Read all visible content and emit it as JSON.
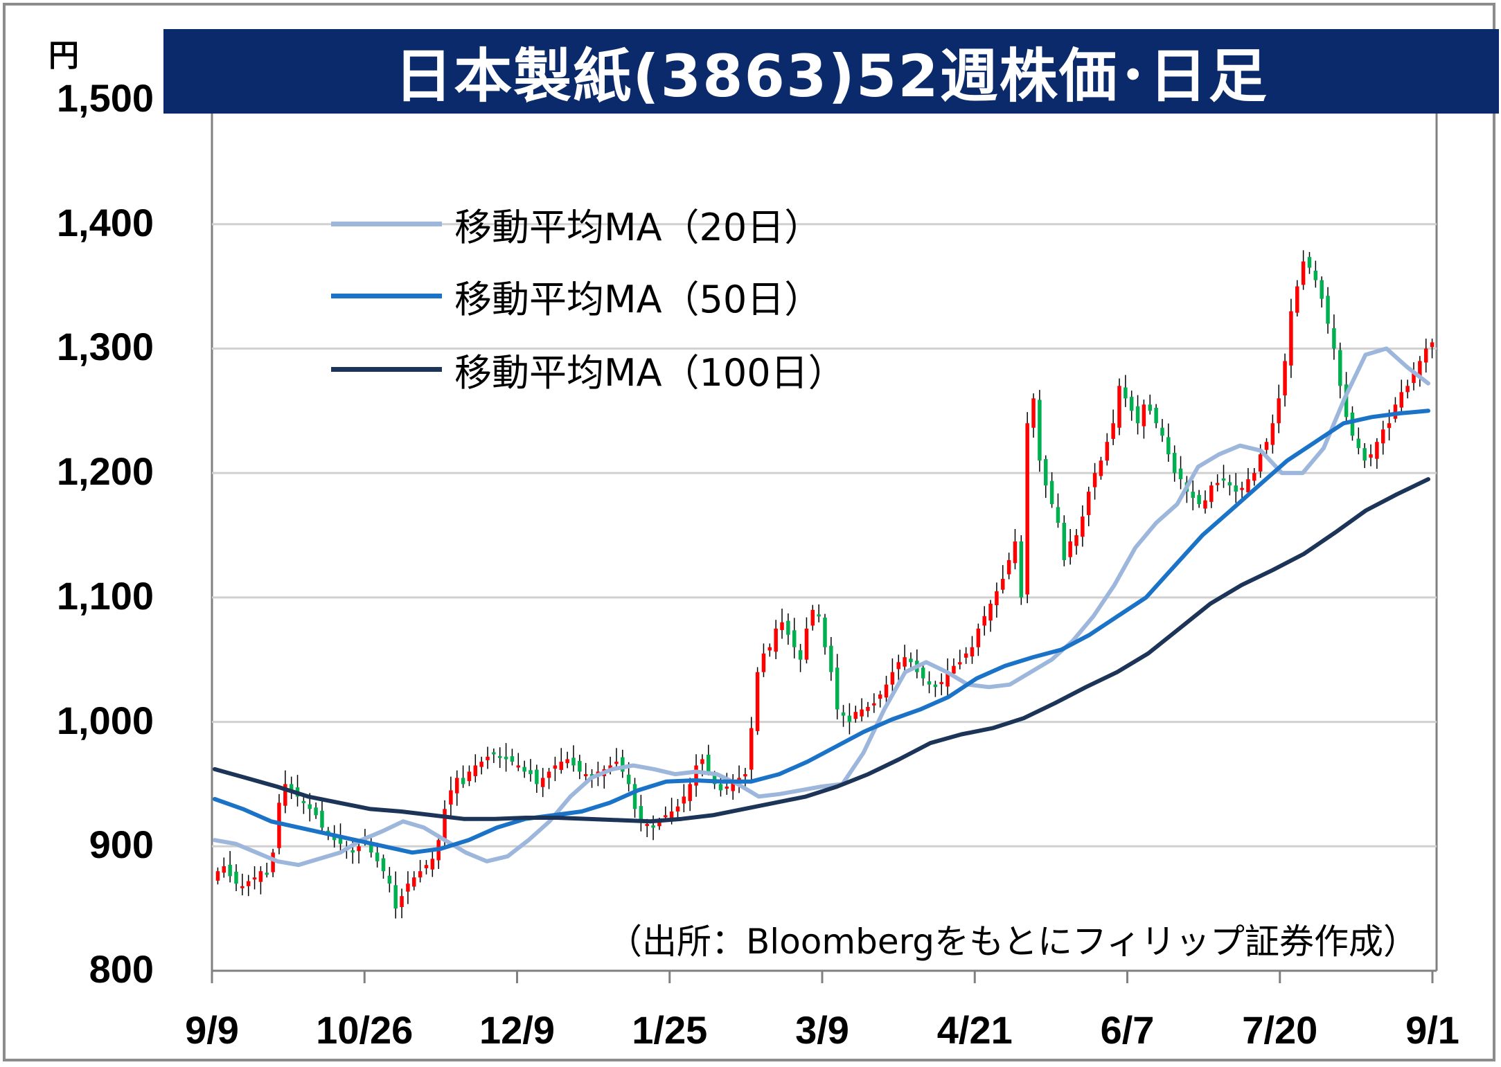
{
  "title": "日本製紙(3863)52週株価･日足",
  "unit_label": "円",
  "source_note": "（出所：Bloombergをもとにフィリップ証券作成）",
  "colors": {
    "title_bg": "#0b2a6b",
    "up_candle": "#ff0000",
    "down_candle": "#00b050",
    "ma20": "#9db6dc",
    "ma50": "#1a73c7",
    "ma100": "#1c3458",
    "grid": "#d0d0d0"
  },
  "legend": [
    {
      "label": "移動平均MA（20日）",
      "color": "#9db6dc"
    },
    {
      "label": "移動平均MA（50日）",
      "color": "#1a73c7"
    },
    {
      "label": "移動平均MA（100日）",
      "color": "#1c3458"
    }
  ],
  "chart_data": {
    "type": "candlestick",
    "title": "日本製紙(3863)52週株価･日足",
    "ylabel": "円",
    "ylim": [
      800,
      1500
    ],
    "yticks": [
      800,
      900,
      1000,
      1100,
      1200,
      1300,
      1400,
      1500
    ],
    "ytick_labels": [
      "800",
      "900",
      "1,000",
      "1,100",
      "1,200",
      "1,300",
      "1,400",
      "1,500"
    ],
    "xtick_labels": [
      "9/9",
      "10/26",
      "12/9",
      "1/25",
      "3/9",
      "4/21",
      "6/7",
      "7/20",
      "9/1"
    ],
    "grid": true,
    "legend_position": "top-left",
    "close_series": [
      880,
      884,
      876,
      870,
      868,
      872,
      875,
      880,
      878,
      895,
      935,
      950,
      945,
      940,
      935,
      930,
      925,
      915,
      910,
      905,
      902,
      898,
      895,
      900,
      905,
      895,
      888,
      880,
      870,
      850,
      860,
      870,
      875,
      880,
      885,
      890,
      905,
      930,
      945,
      955,
      950,
      960,
      965,
      968,
      972,
      975,
      972,
      970,
      968,
      965,
      960,
      958,
      950,
      955,
      960,
      965,
      968,
      970,
      965,
      960,
      958,
      955,
      960,
      962,
      965,
      968,
      960,
      950,
      930,
      920,
      918,
      915,
      920,
      925,
      928,
      932,
      940,
      950,
      965,
      970,
      960,
      950,
      945,
      948,
      952,
      955,
      958,
      995,
      1040,
      1055,
      1060,
      1075,
      1080,
      1070,
      1060,
      1050,
      1075,
      1090,
      1085,
      1060,
      1040,
      1010,
      1005,
      1000,
      1008,
      1010,
      1012,
      1015,
      1022,
      1030,
      1040,
      1048,
      1052,
      1048,
      1040,
      1035,
      1030,
      1028,
      1032,
      1040,
      1045,
      1048,
      1055,
      1060,
      1075,
      1085,
      1095,
      1105,
      1115,
      1130,
      1145,
      1100,
      1240,
      1260,
      1210,
      1190,
      1175,
      1160,
      1130,
      1145,
      1150,
      1165,
      1185,
      1200,
      1210,
      1225,
      1240,
      1270,
      1260,
      1250,
      1240,
      1255,
      1250,
      1240,
      1230,
      1215,
      1200,
      1195,
      1185,
      1180,
      1175,
      1178,
      1190,
      1192,
      1195,
      1190,
      1185,
      1188,
      1195,
      1200,
      1215,
      1225,
      1240,
      1260,
      1290,
      1330,
      1350,
      1370,
      1365,
      1355,
      1340,
      1320,
      1300,
      1270,
      1245,
      1230,
      1220,
      1210,
      1215,
      1225,
      1235,
      1240,
      1255,
      1265,
      1270,
      1280,
      1290,
      1300,
      1305
    ],
    "series": [
      {
        "name": "移動平均MA（20日）",
        "values": [
          905,
          902,
          895,
          888,
          885,
          890,
          895,
          905,
          912,
          920,
          915,
          905,
          895,
          888,
          892,
          905,
          920,
          940,
          955,
          962,
          965,
          962,
          958,
          960,
          958,
          950,
          940,
          942,
          945,
          948,
          950,
          975,
          1010,
          1040,
          1048,
          1040,
          1030,
          1028,
          1030,
          1040,
          1050,
          1065,
          1085,
          1110,
          1140,
          1160,
          1175,
          1205,
          1215,
          1222,
          1218,
          1200,
          1200,
          1220,
          1260,
          1295,
          1300,
          1285,
          1272
        ]
      },
      {
        "name": "移動平均MA（50日）",
        "values": [
          938,
          930,
          920,
          915,
          910,
          905,
          900,
          895,
          898,
          905,
          915,
          922,
          925,
          928,
          935,
          945,
          952,
          953,
          952,
          952,
          958,
          968,
          980,
          992,
          1002,
          1010,
          1020,
          1035,
          1045,
          1052,
          1058,
          1070,
          1085,
          1100,
          1125,
          1150,
          1170,
          1190,
          1210,
          1225,
          1240,
          1245,
          1248,
          1250
        ]
      },
      {
        "name": "移動平均MA（100日）",
        "values": [
          962,
          955,
          948,
          940,
          935,
          930,
          928,
          925,
          922,
          922,
          923,
          923,
          922,
          921,
          920,
          922,
          925,
          930,
          935,
          940,
          948,
          958,
          970,
          983,
          990,
          995,
          1003,
          1015,
          1028,
          1040,
          1055,
          1075,
          1095,
          1110,
          1122,
          1135,
          1152,
          1170,
          1183,
          1195
        ]
      }
    ]
  }
}
